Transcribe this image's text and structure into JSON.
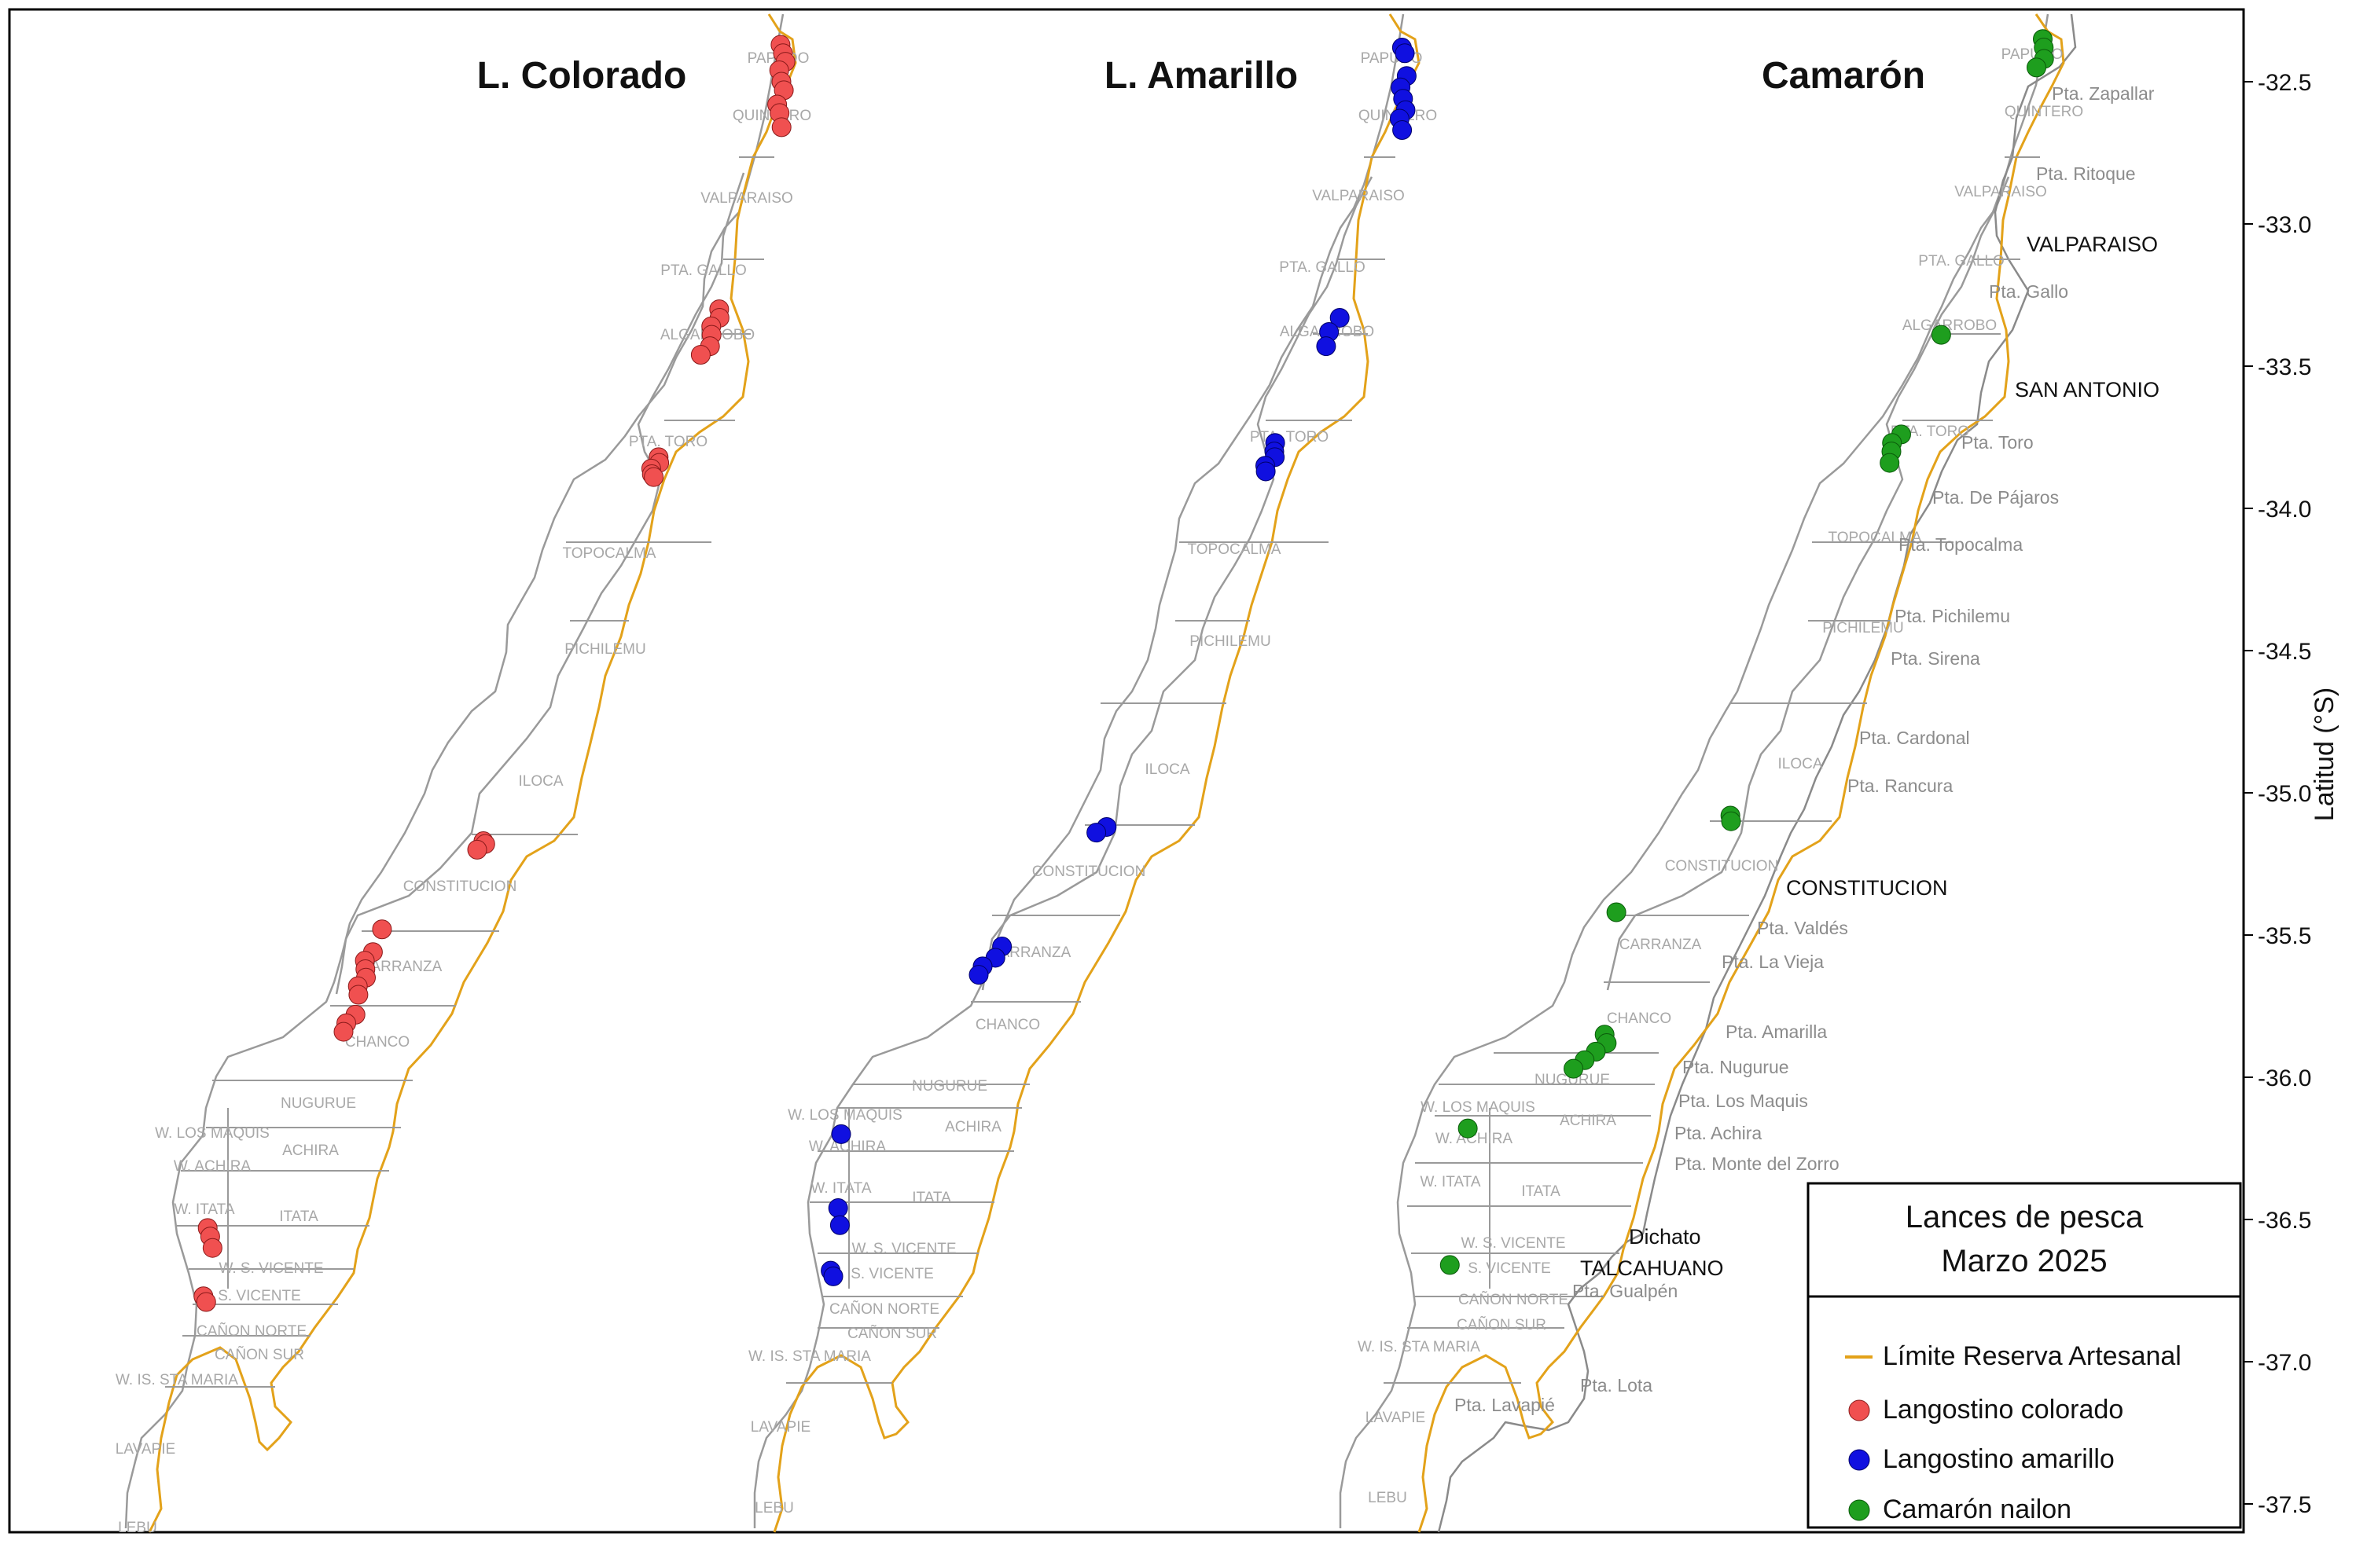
{
  "figure": {
    "panel_titles": [
      "L. Colorado",
      "L. Amarillo",
      "Camarón"
    ],
    "axis_label": "Latitud (°S)",
    "y_ticks": [
      "-32.5",
      "-33.0",
      "-33.5",
      "-34.0",
      "-34.5",
      "-35.0",
      "-35.5",
      "-36.0",
      "-36.5",
      "-37.0",
      "-37.5"
    ],
    "y_tick_values": [
      -32.5,
      -33.0,
      -33.5,
      -34.0,
      -34.5,
      -35.0,
      -35.5,
      -36.0,
      -36.5,
      -37.0,
      -37.5
    ]
  },
  "legend": {
    "title_line1": "Lances de pesca",
    "title_line2": "Marzo 2025",
    "items": [
      {
        "label": "Límite Reserva Artesanal",
        "symbol": "line",
        "color": "#E3A21A"
      },
      {
        "label": "Langostino colorado",
        "symbol": "dot",
        "color": "#F05050"
      },
      {
        "label": "Langostino amarillo",
        "symbol": "dot",
        "color": "#1010E0"
      },
      {
        "label": "Camarón nailon",
        "symbol": "dot",
        "color": "#1E9E1E"
      }
    ]
  },
  "colors": {
    "coast": "#9A9A9A",
    "reserve_limit": "#E3A21A",
    "zone_label": "#A8A8A8",
    "place_label": "#8C8C8C",
    "city_label": "#111111",
    "frame": "#000000"
  },
  "zone_labels": {
    "colorado": [
      "PAPUDO",
      "QUINTERO",
      "VALPARAISO",
      "PTA. GALLO",
      "ALGARROBO",
      "PTA. TORO",
      "TOPOCALMA",
      "PICHILEMU",
      "ILOCA",
      "CONSTITUCION",
      "CARRANZA",
      "CHANCO",
      "NUGURUE",
      "W. LOS MAQUIS",
      "ACHIRA",
      "W. ACHIRA",
      "W. ITATA",
      "ITATA",
      "W. S. VICENTE",
      "S. VICENTE",
      "CAÑON NORTE",
      "CAÑON SUR",
      "W. IS. STA MARIA",
      "LAVAPIE",
      "LEBU"
    ],
    "amarillo": [
      "PAPUDO",
      "QUINTERO",
      "VALPARAISO",
      "PTA. GALLO",
      "ALGARROBO",
      "PTA. TORO",
      "TOPOCALMA",
      "PICHILEMU",
      "ILOCA",
      "CONSTITUCION",
      "CARRANZA",
      "CHANCO",
      "NUGURUE",
      "W. LOS MAQUIS",
      "ACHIRA",
      "W. ACHIRA",
      "W. ITATA",
      "ITATA",
      "W. S. VICENTE",
      "S. VICENTE",
      "CAÑON NORTE",
      "CAÑON SUR",
      "W. IS. STA MARIA",
      "LAVAPIE",
      "LEBU"
    ],
    "camaron": [
      "PAPUDO",
      "QUINTERO",
      "VALPARAISO",
      "PTA. GALLO",
      "ALGARROBO",
      "PTA. TORO",
      "TOPOCALMA",
      "PICHILEMU",
      "ILOCA",
      "CONSTITUCION",
      "CARRANZA",
      "CHANCO",
      "NUGURUE",
      "W. LOS MAQUIS",
      "ACHIRA",
      "W. ACHIRA",
      "W. ITATA",
      "ITATA",
      "W. S. VICENTE",
      "S. VICENTE",
      "CAÑON NORTE",
      "CAÑON SUR",
      "W. IS. STA MARIA",
      "LAVAPIE",
      "LEBU"
    ]
  },
  "coast_places": [
    "Pta. Zapallar",
    "Pta. Ritoque",
    "Pta. Gallo",
    "Pta. Toro",
    "Pta. De Pájaros",
    "Pta. Topocalma",
    "Pta. Pichilemu",
    "Pta. Sirena",
    "Pta. Cardonal",
    "Pta. Rancura",
    "Pta. Valdés",
    "Pta. La Vieja",
    "Pta. Amarilla",
    "Pta. Nugurue",
    "Pta. Los Maquis",
    "Pta. Achira",
    "Pta. Monte del Zorro",
    "Pta. Gualpén",
    "Pta. Lota",
    "Pta. Lavapié"
  ],
  "cities": [
    "VALPARAISO",
    "SAN ANTONIO",
    "CONSTITUCION",
    "Dichato",
    "TALCAHUANO"
  ],
  "chart_data": {
    "type": "scatter",
    "title": "",
    "ylabel": "Latitud (°S)",
    "ylim": [
      -37.63,
      -32.27
    ],
    "y_ticks": [
      -32.5,
      -33.0,
      -33.5,
      -34.0,
      -34.5,
      -35.0,
      -35.5,
      -36.0,
      -36.5,
      -37.0,
      -37.5
    ],
    "series": [
      {
        "name": "Langostino colorado",
        "color": "#F05050",
        "latitudes": [
          -32.37,
          -32.4,
          -32.43,
          -32.46,
          -32.5,
          -32.53,
          -32.58,
          -32.61,
          -32.66,
          -33.3,
          -33.33,
          -33.36,
          -33.39,
          -33.43,
          -33.46,
          -33.82,
          -33.84,
          -33.86,
          -33.88,
          -33.89,
          -35.17,
          -35.18,
          -35.2,
          -35.48,
          -35.56,
          -35.59,
          -35.62,
          -35.65,
          -35.68,
          -35.71,
          -35.78,
          -35.81,
          -35.84,
          -36.53,
          -36.56,
          -36.6,
          -36.77,
          -36.79
        ]
      },
      {
        "name": "Langostino amarillo",
        "color": "#1010E0",
        "latitudes": [
          -32.38,
          -32.4,
          -32.48,
          -32.52,
          -32.56,
          -32.6,
          -32.63,
          -32.67,
          -33.33,
          -33.38,
          -33.43,
          -33.77,
          -33.8,
          -33.82,
          -33.85,
          -33.87,
          -35.12,
          -35.14,
          -35.54,
          -35.58,
          -35.61,
          -35.64,
          -36.2,
          -36.46,
          -36.52,
          -36.68,
          -36.7
        ]
      },
      {
        "name": "Camarón nailon",
        "color": "#1E9E1E",
        "latitudes": [
          -32.35,
          -32.38,
          -32.42,
          -32.45,
          -33.39,
          -33.74,
          -33.77,
          -33.8,
          -33.84,
          -35.08,
          -35.1,
          -35.42,
          -35.85,
          -35.88,
          -35.91,
          -35.94,
          -35.97,
          -36.18,
          -36.66
        ]
      }
    ]
  }
}
